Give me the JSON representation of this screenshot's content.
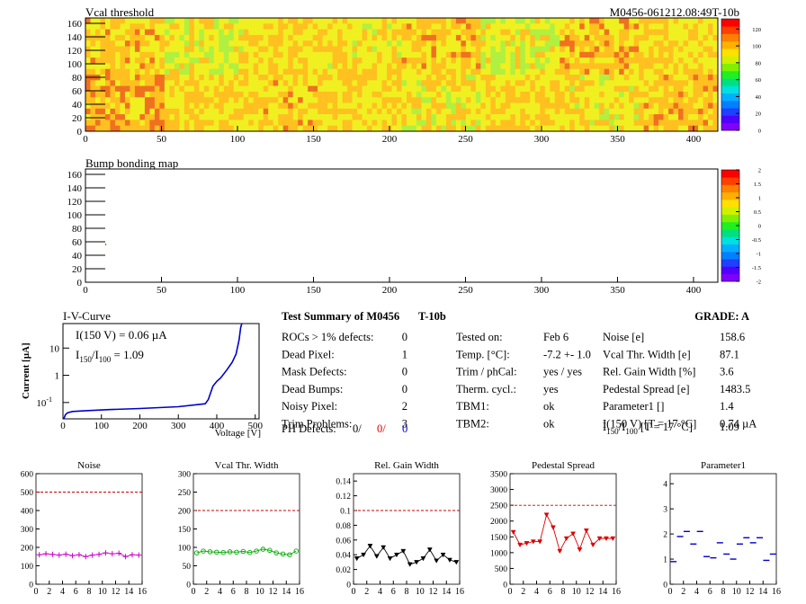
{
  "header": {
    "map1_title": "Vcal threshold",
    "module_id": "M0456-061212.08:49T-10b",
    "map2_title": "Bump bonding map"
  },
  "maps": {
    "x_ticks": [
      "0",
      "50",
      "100",
      "150",
      "200",
      "250",
      "300",
      "350",
      "400"
    ],
    "y_ticks": [
      "0",
      "20",
      "40",
      "60",
      "80",
      "100",
      "120",
      "140",
      "160"
    ],
    "palette1_ticks": [
      "0",
      "20",
      "40",
      "60",
      "80",
      "100",
      "120"
    ],
    "palette2_ticks": [
      "-2",
      "-1.5",
      "-1",
      "-0.5",
      "0",
      "0.5",
      "1",
      "1.5",
      "2"
    ]
  },
  "iv": {
    "title": "I-V-Curve",
    "ylabel": "Current [µA]",
    "xlabel": "Voltage [V]",
    "line1": "I(150 V) = 0.06 µA",
    "line2_a": "I",
    "line2_sub1": "150",
    "line2_b": "/I",
    "line2_sub2": "100",
    "line2_c": " =  1.09",
    "x_ticks": [
      "0",
      "100",
      "200",
      "300",
      "400",
      "500"
    ],
    "y_ticks": [
      "10",
      "1",
      "10"
    ],
    "y_tick_exp": "-1"
  },
  "summary": {
    "title": "Test Summary of M0456",
    "tag": "T-10b",
    "grade_label": "GRADE:  A",
    "left": [
      {
        "label": "ROCs > 1% defects:",
        "value": "0"
      },
      {
        "label": "Dead Pixel:",
        "value": "1"
      },
      {
        "label": "Mask Defects:",
        "value": "0"
      },
      {
        "label": "Dead Bumps:",
        "value": "0"
      },
      {
        "label": "Noisy Pixel:",
        "value": "2"
      },
      {
        "label": "Trim Problems:",
        "value": "3"
      }
    ],
    "ph_label": "PH Defects:",
    "ph_v1": "0/",
    "ph_v2": "0/",
    "ph_v3": "0",
    "mid": [
      {
        "label": "Tested on:",
        "value": "Feb 6"
      },
      {
        "label": "Temp. [°C]:",
        "value": "-7.2 +- 1.0"
      },
      {
        "label": "Trim / phCal:",
        "value": "yes / yes"
      },
      {
        "label": "Therm. cycl.:",
        "value": "yes"
      },
      {
        "label": "TBM1:",
        "value": "ok"
      },
      {
        "label": "TBM2:",
        "value": "ok"
      }
    ],
    "right": [
      {
        "label": "Noise [e]",
        "value": "158.6"
      },
      {
        "label": "Vcal Thr. Width [e]",
        "value": "87.1"
      },
      {
        "label": "Rel. Gain Width [%]",
        "value": "3.6"
      },
      {
        "label": "Pedestal Spread [e]",
        "value": "1483.5"
      },
      {
        "label": "Parameter1 []",
        "value": "1.4"
      },
      {
        "label": "I(150 V) [T = 17 °C]",
        "value": "0.74 µA"
      }
    ],
    "last_a": "I",
    "last_sub1": "150",
    "last_b": "/I",
    "last_sub2": "100",
    "last_c": "  [T = 17 °C]",
    "last_value": "1.09"
  },
  "chart_data": [
    {
      "type": "scatter",
      "title": "Noise",
      "x": [
        0,
        1,
        2,
        3,
        4,
        5,
        6,
        7,
        8,
        9,
        10,
        11,
        12,
        13,
        14,
        15
      ],
      "values": [
        160,
        165,
        162,
        158,
        163,
        155,
        160,
        150,
        158,
        162,
        170,
        165,
        168,
        150,
        160,
        158
      ],
      "ylim": [
        0,
        600
      ],
      "yticks": [
        0,
        100,
        200,
        300,
        400,
        500,
        600
      ],
      "ref": 500,
      "color": "#cc00cc",
      "marker": "plus"
    },
    {
      "type": "line",
      "title": "Vcal Thr. Width",
      "x": [
        0,
        1,
        2,
        3,
        4,
        5,
        6,
        7,
        8,
        9,
        10,
        11,
        12,
        13,
        14,
        15
      ],
      "values": [
        85,
        90,
        88,
        87,
        86,
        88,
        87,
        89,
        86,
        90,
        95,
        92,
        85,
        82,
        80,
        90
      ],
      "ylim": [
        0,
        300
      ],
      "yticks": [
        0,
        50,
        100,
        150,
        200,
        250,
        300
      ],
      "ref": 200,
      "color": "#00aa00",
      "marker": "circle"
    },
    {
      "type": "line",
      "title": "Rel. Gain Width",
      "x": [
        0,
        1,
        2,
        3,
        4,
        5,
        6,
        7,
        8,
        9,
        10,
        11,
        12,
        13,
        14,
        15
      ],
      "values": [
        0.035,
        0.04,
        0.052,
        0.038,
        0.05,
        0.035,
        0.04,
        0.045,
        0.027,
        0.03,
        0.035,
        0.047,
        0.032,
        0.04,
        0.033,
        0.03
      ],
      "ylim": [
        0,
        0.15
      ],
      "yticks": [
        0,
        0.02,
        0.04,
        0.06,
        0.08,
        0.1,
        0.12,
        0.14
      ],
      "ref": 0.1,
      "color": "#000000",
      "marker": "triangle"
    },
    {
      "type": "line",
      "title": "Pedestal Spread",
      "x": [
        0,
        1,
        2,
        3,
        4,
        5,
        6,
        7,
        8,
        9,
        10,
        11,
        12,
        13,
        14,
        15
      ],
      "values": [
        1650,
        1250,
        1300,
        1350,
        1350,
        2200,
        1800,
        1050,
        1450,
        1600,
        1100,
        1700,
        1250,
        1450,
        1450,
        1450
      ],
      "ylim": [
        0,
        3500
      ],
      "yticks": [
        0,
        500,
        1000,
        1500,
        2000,
        2500,
        3000,
        3500
      ],
      "ref": 2500,
      "color": "#dd0000",
      "marker": "triangle"
    },
    {
      "type": "scatter",
      "title": "Parameter1",
      "x": [
        0,
        1,
        2,
        3,
        4,
        5,
        6,
        7,
        8,
        9,
        10,
        11,
        12,
        13,
        14,
        15
      ],
      "values": [
        0.9,
        1.9,
        2.1,
        1.6,
        2.1,
        1.1,
        1.05,
        1.65,
        1.2,
        1.0,
        1.6,
        1.85,
        1.65,
        1.85,
        0.95,
        1.2
      ],
      "ylim": [
        0,
        4.4
      ],
      "yticks": [
        0,
        1,
        2,
        3,
        4
      ],
      "color": "#0000cc",
      "marker": "hbar"
    }
  ],
  "bottom_x_ticks": [
    "0",
    "2",
    "4",
    "6",
    "8",
    "10",
    "12",
    "14",
    "16"
  ]
}
